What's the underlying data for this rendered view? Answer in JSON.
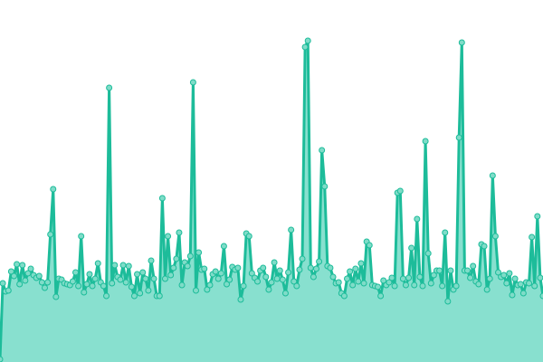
{
  "chart_data": {
    "type": "area",
    "title": "",
    "xlabel": "",
    "ylabel": "",
    "ylim": [
      0,
      400
    ],
    "grid": false,
    "axes_visible": false,
    "markers": true,
    "colors": {
      "line": "#1dbc9a",
      "fill": "#88e0cf",
      "marker_fill": "#7fdcc8",
      "marker_stroke": "#1dbc9a"
    },
    "series": [
      {
        "values": [
          3,
          87,
          78,
          79,
          100,
          95,
          108,
          86,
          107,
          90,
          98,
          103,
          96,
          93,
          95,
          88,
          82,
          88,
          141,
          191,
          72,
          92,
          91,
          87,
          86,
          85,
          89,
          99,
          84,
          139,
          77,
          86,
          97,
          84,
          92,
          109,
          88,
          84,
          73,
          303,
          87,
          107,
          94,
          91,
          107,
          88,
          106,
          83,
          73,
          97,
          76,
          99,
          92,
          79,
          112,
          92,
          73,
          73,
          181,
          92,
          139,
          96,
          104,
          114,
          143,
          85,
          110,
          106,
          117,
          309,
          79,
          121,
          102,
          103,
          80,
          85,
          97,
          100,
          92,
          98,
          128,
          86,
          91,
          105,
          102,
          104,
          69,
          84,
          142,
          139,
          98,
          93,
          89,
          101,
          104,
          94,
          80,
          88,
          110,
          92,
          101,
          91,
          76,
          99,
          146,
          89,
          84,
          102,
          114,
          348,
          355,
          104,
          94,
          103,
          111,
          234,
          194,
          106,
          104,
          94,
          87,
          88,
          76,
          73,
          92,
          100,
          85,
          103,
          89,
          109,
          87,
          133,
          129,
          85,
          84,
          83,
          73,
          90,
          85,
          88,
          93,
          84,
          187,
          189,
          92,
          85,
          93,
          126,
          85,
          158,
          94,
          84,
          244,
          120,
          87,
          96,
          101,
          101,
          84,
          143,
          67,
          101,
          80,
          84,
          248,
          353,
          101,
          101,
          93,
          106,
          89,
          86,
          130,
          128,
          80,
          92,
          206,
          139,
          99,
          94,
          96,
          87,
          98,
          74,
          92,
          85,
          86,
          76,
          88,
          87,
          138,
          84,
          161,
          93,
          73
        ]
      }
    ]
  }
}
